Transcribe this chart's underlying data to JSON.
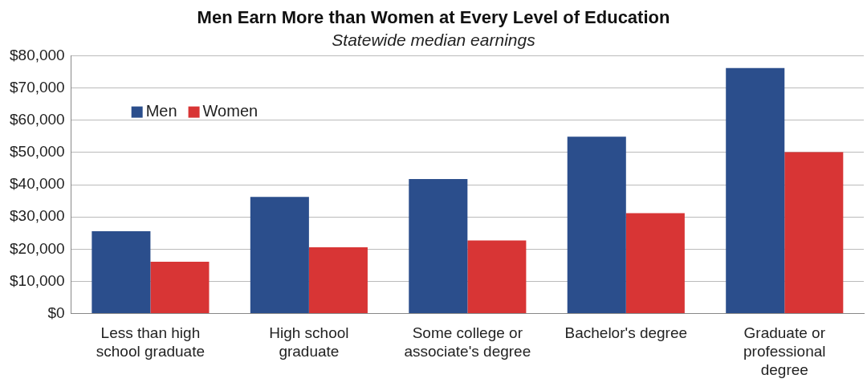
{
  "chart_data": {
    "type": "bar",
    "title": "Men Earn More than Women at Every Level of Education",
    "subtitle": "Statewide median earnings",
    "categories": [
      "Less than high school graduate",
      "High school graduate",
      "Some college or associate's degree",
      "Bachelor's degree",
      "Graduate or professional degree"
    ],
    "series": [
      {
        "name": "Men",
        "color": "#2b4e8c",
        "values": [
          25600,
          36200,
          41800,
          54900,
          76200
        ]
      },
      {
        "name": "Women",
        "color": "#d83535",
        "values": [
          16100,
          20600,
          22700,
          31200,
          50100
        ]
      }
    ],
    "ylim": [
      0,
      80000
    ],
    "yticks": [
      {
        "value": 0,
        "label": "$0"
      },
      {
        "value": 10000,
        "label": "$10,000"
      },
      {
        "value": 20000,
        "label": "$20,000"
      },
      {
        "value": 30000,
        "label": "$30,000"
      },
      {
        "value": 40000,
        "label": "$40,000"
      },
      {
        "value": 50000,
        "label": "$50,000"
      },
      {
        "value": 60000,
        "label": "$60,000"
      },
      {
        "value": 70000,
        "label": "$70,000"
      },
      {
        "value": 80000,
        "label": "$80,000"
      }
    ],
    "grid": "y",
    "legend": "top left"
  }
}
